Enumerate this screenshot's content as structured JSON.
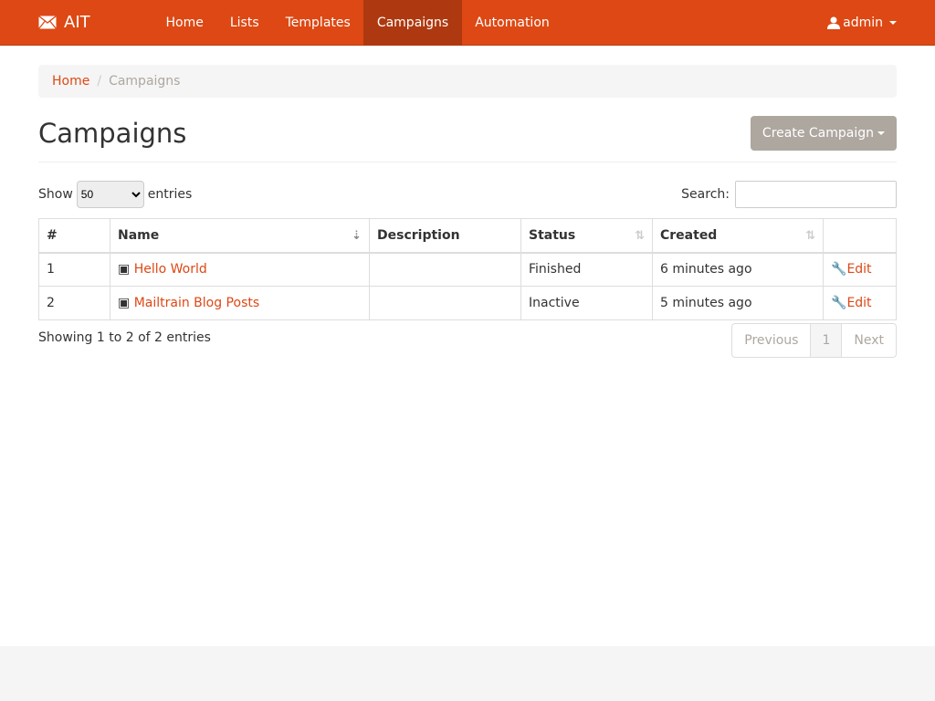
{
  "nav": {
    "brand": "AIT",
    "items": [
      {
        "label": "Home"
      },
      {
        "label": "Lists"
      },
      {
        "label": "Templates"
      },
      {
        "label": "Campaigns",
        "active": true
      },
      {
        "label": "Automation"
      }
    ],
    "user": "admin"
  },
  "breadcrumb": {
    "home": "Home",
    "current": "Campaigns"
  },
  "page": {
    "title": "Campaigns",
    "create_button": "Create Campaign"
  },
  "controls": {
    "show": "Show",
    "entries_value": "50",
    "entries": "entries",
    "search_label": "Search:",
    "search_value": ""
  },
  "table": {
    "headers": [
      "#",
      "Name",
      "Description",
      "Status",
      "Created",
      ""
    ],
    "rows": [
      {
        "num": "1",
        "name": "Hello World",
        "description": "",
        "status": "Finished",
        "created": "6 minutes ago",
        "action": "Edit"
      },
      {
        "num": "2",
        "name": "Mailtrain Blog Posts",
        "description": "",
        "status": "Inactive",
        "created": "5 minutes ago",
        "action": "Edit"
      }
    ]
  },
  "footer": {
    "info": "Showing 1 to 2 of 2 entries",
    "previous": "Previous",
    "page": "1",
    "next": "Next"
  },
  "colors": {
    "brand": "#dd4814",
    "active": "#ae3910",
    "button": "#aea79f"
  }
}
